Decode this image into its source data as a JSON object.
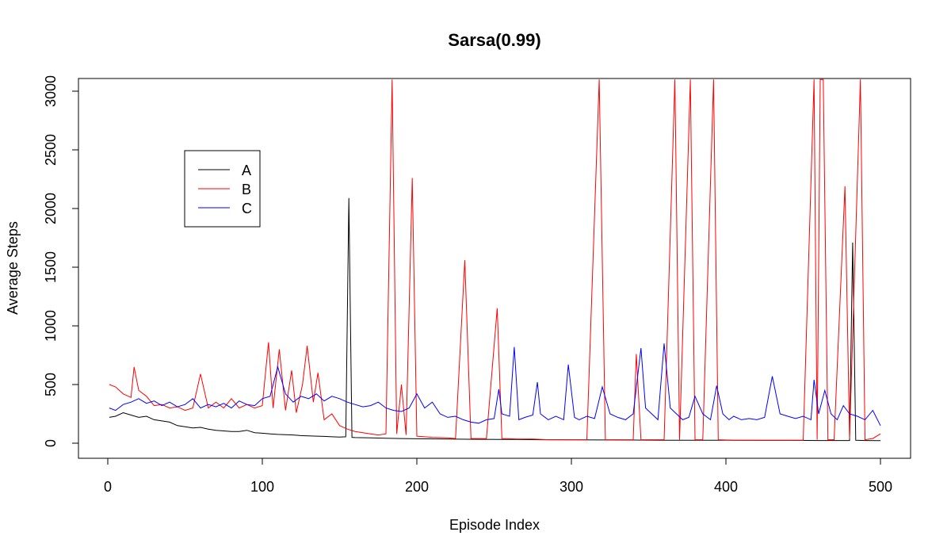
{
  "chart_data": {
    "type": "line",
    "title": "Sarsa(0.99)",
    "xlabel": "Episode Index",
    "ylabel": "Average Steps",
    "xlim": [
      0,
      520
    ],
    "ylim": [
      0,
      3100
    ],
    "xticks": [
      0,
      100,
      200,
      300,
      400,
      500
    ],
    "yticks": [
      0,
      500,
      1000,
      1500,
      2000,
      2500,
      3000
    ],
    "grid": false,
    "legend_position": "upper-left (inside)",
    "series": [
      {
        "name": "A",
        "color": "#000000",
        "points": [
          [
            1,
            220
          ],
          [
            5,
            230
          ],
          [
            10,
            260
          ],
          [
            15,
            240
          ],
          [
            20,
            220
          ],
          [
            25,
            230
          ],
          [
            30,
            200
          ],
          [
            35,
            190
          ],
          [
            40,
            180
          ],
          [
            45,
            150
          ],
          [
            50,
            140
          ],
          [
            55,
            130
          ],
          [
            60,
            135
          ],
          [
            65,
            120
          ],
          [
            70,
            110
          ],
          [
            75,
            105
          ],
          [
            80,
            100
          ],
          [
            85,
            100
          ],
          [
            90,
            110
          ],
          [
            95,
            90
          ],
          [
            100,
            85
          ],
          [
            105,
            80
          ],
          [
            110,
            75
          ],
          [
            115,
            72
          ],
          [
            120,
            70
          ],
          [
            125,
            65
          ],
          [
            130,
            62
          ],
          [
            135,
            60
          ],
          [
            140,
            58
          ],
          [
            145,
            55
          ],
          [
            150,
            52
          ],
          [
            154,
            55
          ],
          [
            156,
            2090
          ],
          [
            158,
            50
          ],
          [
            160,
            48
          ],
          [
            170,
            45
          ],
          [
            180,
            42
          ],
          [
            190,
            40
          ],
          [
            200,
            38
          ],
          [
            220,
            35
          ],
          [
            240,
            33
          ],
          [
            260,
            32
          ],
          [
            280,
            30
          ],
          [
            300,
            29
          ],
          [
            320,
            28
          ],
          [
            340,
            27
          ],
          [
            360,
            26
          ],
          [
            380,
            25
          ],
          [
            400,
            25
          ],
          [
            420,
            24
          ],
          [
            440,
            24
          ],
          [
            460,
            23
          ],
          [
            480,
            23
          ],
          [
            482,
            1710
          ],
          [
            484,
            25
          ],
          [
            490,
            23
          ],
          [
            500,
            22
          ]
        ]
      },
      {
        "name": "B",
        "color": "#ff0000",
        "points": [
          [
            1,
            500
          ],
          [
            5,
            480
          ],
          [
            10,
            420
          ],
          [
            15,
            390
          ],
          [
            17,
            650
          ],
          [
            20,
            450
          ],
          [
            25,
            400
          ],
          [
            30,
            320
          ],
          [
            35,
            330
          ],
          [
            40,
            300
          ],
          [
            45,
            310
          ],
          [
            50,
            280
          ],
          [
            55,
            300
          ],
          [
            60,
            590
          ],
          [
            65,
            300
          ],
          [
            70,
            350
          ],
          [
            75,
            300
          ],
          [
            80,
            380
          ],
          [
            85,
            300
          ],
          [
            90,
            330
          ],
          [
            95,
            300
          ],
          [
            100,
            320
          ],
          [
            104,
            860
          ],
          [
            107,
            300
          ],
          [
            111,
            800
          ],
          [
            115,
            280
          ],
          [
            119,
            620
          ],
          [
            122,
            260
          ],
          [
            126,
            500
          ],
          [
            129,
            830
          ],
          [
            133,
            350
          ],
          [
            136,
            600
          ],
          [
            140,
            200
          ],
          [
            145,
            250
          ],
          [
            150,
            150
          ],
          [
            155,
            120
          ],
          [
            160,
            100
          ],
          [
            165,
            90
          ],
          [
            170,
            80
          ],
          [
            175,
            70
          ],
          [
            180,
            80
          ],
          [
            184,
            3100
          ],
          [
            187,
            80
          ],
          [
            190,
            500
          ],
          [
            193,
            70
          ],
          [
            197,
            2260
          ],
          [
            200,
            60
          ],
          [
            210,
            50
          ],
          [
            220,
            45
          ],
          [
            225,
            40
          ],
          [
            231,
            1560
          ],
          [
            235,
            40
          ],
          [
            245,
            40
          ],
          [
            252,
            1150
          ],
          [
            255,
            40
          ],
          [
            265,
            35
          ],
          [
            275,
            35
          ],
          [
            285,
            30
          ],
          [
            300,
            30
          ],
          [
            310,
            30
          ],
          [
            318,
            3100
          ],
          [
            322,
            30
          ],
          [
            330,
            30
          ],
          [
            340,
            30
          ],
          [
            342,
            760
          ],
          [
            345,
            30
          ],
          [
            350,
            30
          ],
          [
            360,
            30
          ],
          [
            367,
            3100
          ],
          [
            370,
            30
          ],
          [
            377,
            3100
          ],
          [
            380,
            30
          ],
          [
            385,
            30
          ],
          [
            392,
            3100
          ],
          [
            395,
            30
          ],
          [
            405,
            25
          ],
          [
            420,
            25
          ],
          [
            440,
            25
          ],
          [
            450,
            25
          ],
          [
            457,
            3100
          ],
          [
            459,
            30
          ],
          [
            461,
            3100
          ],
          [
            463,
            3100
          ],
          [
            466,
            30
          ],
          [
            470,
            30
          ],
          [
            477,
            2190
          ],
          [
            480,
            40
          ],
          [
            487,
            3100
          ],
          [
            490,
            30
          ],
          [
            495,
            40
          ],
          [
            500,
            80
          ]
        ]
      },
      {
        "name": "C",
        "color": "#0000ff",
        "points": [
          [
            1,
            300
          ],
          [
            5,
            280
          ],
          [
            10,
            330
          ],
          [
            15,
            350
          ],
          [
            20,
            380
          ],
          [
            25,
            340
          ],
          [
            30,
            360
          ],
          [
            35,
            320
          ],
          [
            40,
            350
          ],
          [
            45,
            310
          ],
          [
            50,
            330
          ],
          [
            55,
            380
          ],
          [
            60,
            300
          ],
          [
            65,
            330
          ],
          [
            70,
            310
          ],
          [
            75,
            340
          ],
          [
            80,
            300
          ],
          [
            85,
            360
          ],
          [
            90,
            330
          ],
          [
            95,
            320
          ],
          [
            100,
            380
          ],
          [
            105,
            400
          ],
          [
            110,
            650
          ],
          [
            115,
            420
          ],
          [
            120,
            350
          ],
          [
            125,
            400
          ],
          [
            130,
            380
          ],
          [
            135,
            420
          ],
          [
            140,
            360
          ],
          [
            145,
            400
          ],
          [
            150,
            380
          ],
          [
            155,
            350
          ],
          [
            160,
            330
          ],
          [
            165,
            310
          ],
          [
            170,
            320
          ],
          [
            175,
            350
          ],
          [
            180,
            300
          ],
          [
            185,
            280
          ],
          [
            190,
            270
          ],
          [
            195,
            300
          ],
          [
            200,
            420
          ],
          [
            205,
            300
          ],
          [
            210,
            350
          ],
          [
            215,
            250
          ],
          [
            220,
            220
          ],
          [
            225,
            230
          ],
          [
            230,
            200
          ],
          [
            235,
            180
          ],
          [
            240,
            170
          ],
          [
            245,
            200
          ],
          [
            250,
            210
          ],
          [
            253,
            460
          ],
          [
            255,
            250
          ],
          [
            260,
            230
          ],
          [
            263,
            820
          ],
          [
            266,
            200
          ],
          [
            270,
            220
          ],
          [
            275,
            240
          ],
          [
            278,
            520
          ],
          [
            280,
            250
          ],
          [
            285,
            200
          ],
          [
            290,
            230
          ],
          [
            295,
            200
          ],
          [
            298,
            670
          ],
          [
            302,
            220
          ],
          [
            305,
            200
          ],
          [
            310,
            230
          ],
          [
            315,
            210
          ],
          [
            320,
            480
          ],
          [
            325,
            250
          ],
          [
            330,
            220
          ],
          [
            335,
            200
          ],
          [
            340,
            250
          ],
          [
            345,
            810
          ],
          [
            348,
            300
          ],
          [
            352,
            250
          ],
          [
            356,
            200
          ],
          [
            360,
            850
          ],
          [
            364,
            300
          ],
          [
            368,
            250
          ],
          [
            372,
            200
          ],
          [
            376,
            220
          ],
          [
            380,
            400
          ],
          [
            385,
            250
          ],
          [
            390,
            200
          ],
          [
            394,
            490
          ],
          [
            398,
            250
          ],
          [
            402,
            200
          ],
          [
            405,
            230
          ],
          [
            410,
            200
          ],
          [
            415,
            210
          ],
          [
            420,
            200
          ],
          [
            425,
            220
          ],
          [
            430,
            570
          ],
          [
            435,
            250
          ],
          [
            440,
            230
          ],
          [
            445,
            210
          ],
          [
            450,
            230
          ],
          [
            455,
            200
          ],
          [
            457,
            540
          ],
          [
            460,
            250
          ],
          [
            464,
            450
          ],
          [
            468,
            250
          ],
          [
            472,
            200
          ],
          [
            476,
            320
          ],
          [
            480,
            250
          ],
          [
            485,
            230
          ],
          [
            490,
            200
          ],
          [
            495,
            280
          ],
          [
            500,
            150
          ]
        ]
      }
    ]
  }
}
